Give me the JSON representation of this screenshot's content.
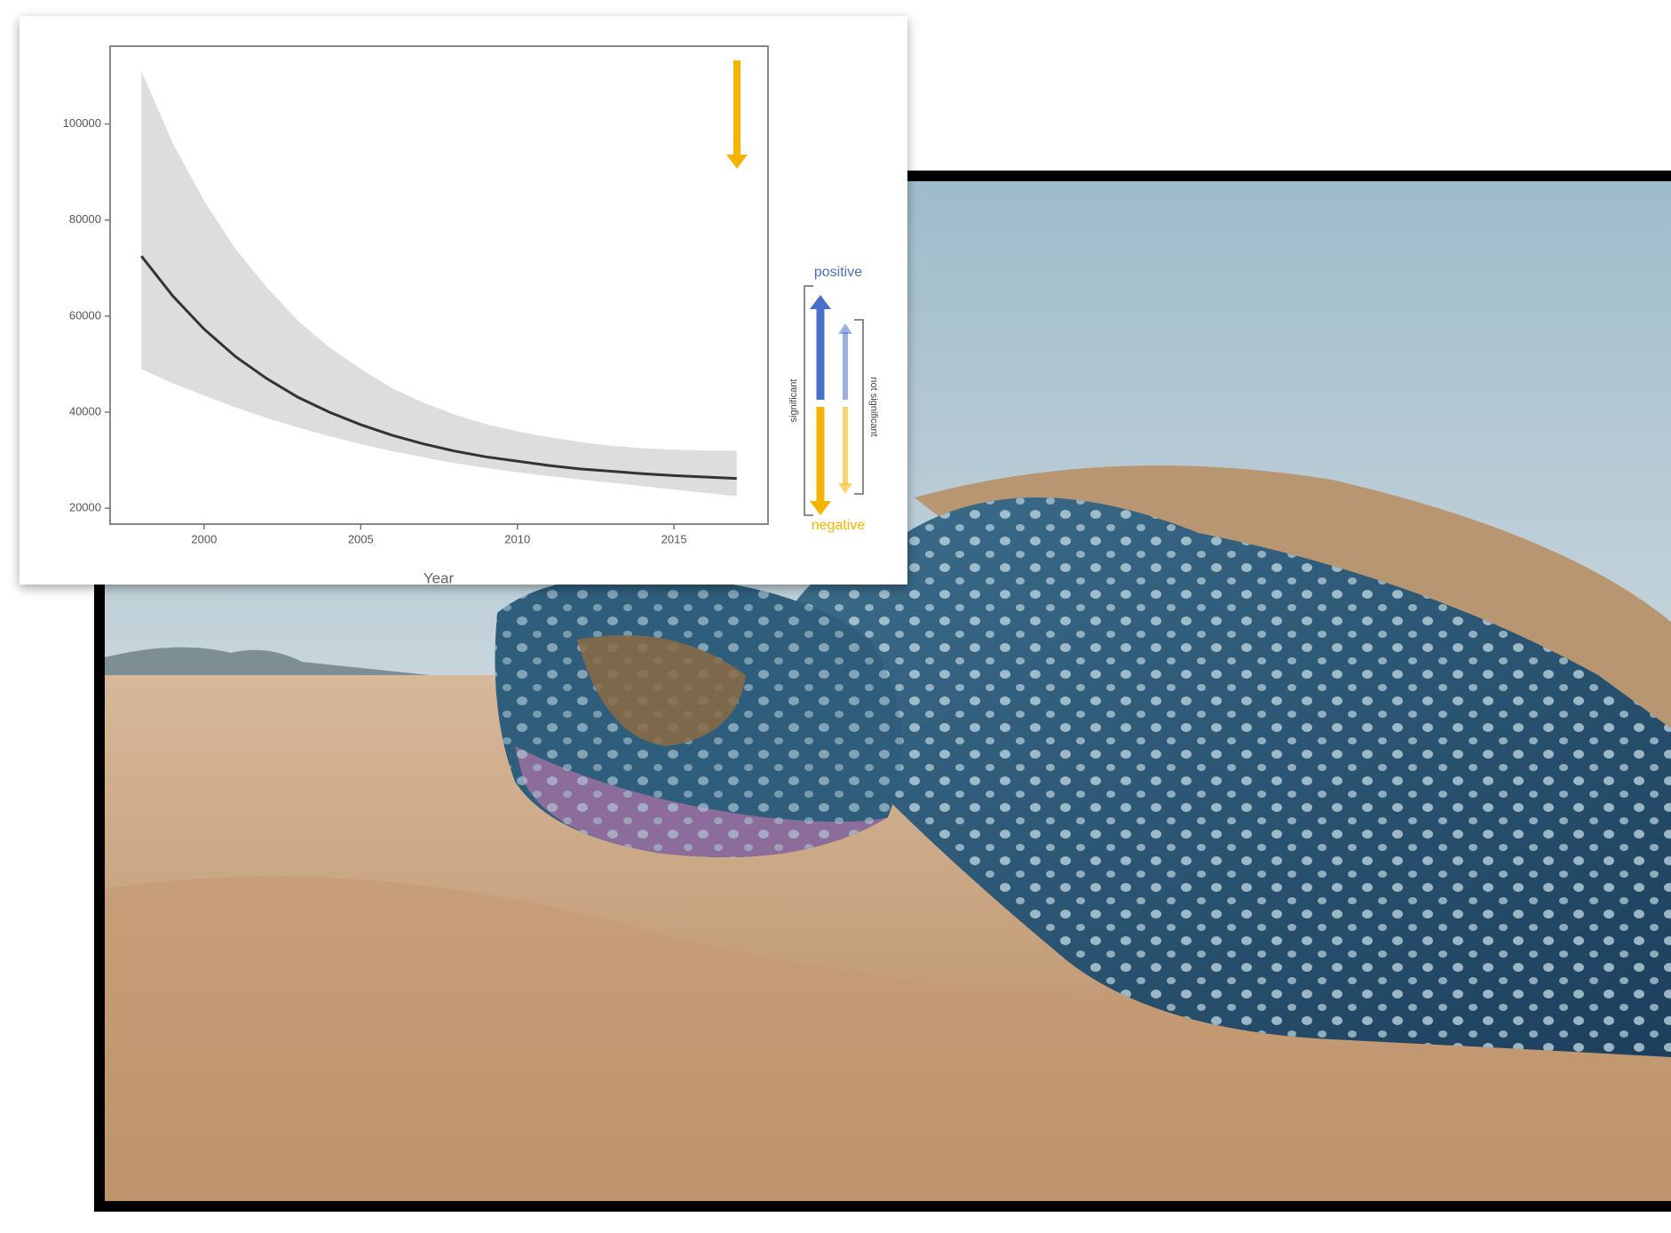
{
  "chart_data": {
    "type": "line",
    "x": [
      1998,
      1999,
      2000,
      2001,
      2002,
      2003,
      2004,
      2005,
      2006,
      2007,
      2008,
      2009,
      2010,
      2011,
      2012,
      2013,
      2014,
      2015,
      2016,
      2017
    ],
    "values": [
      72500,
      64200,
      57300,
      51600,
      47000,
      43100,
      40000,
      37400,
      35200,
      33400,
      31900,
      30700,
      29800,
      28900,
      28200,
      27700,
      27200,
      26800,
      26500,
      26200
    ],
    "upper": [
      111000,
      96000,
      84000,
      74000,
      66000,
      59000,
      53500,
      49000,
      45000,
      42000,
      39500,
      37500,
      36000,
      34800,
      33800,
      33000,
      32500,
      32200,
      32000,
      32000
    ],
    "lower": [
      49000,
      46000,
      43500,
      41000,
      38800,
      36800,
      35000,
      33400,
      31900,
      30600,
      29400,
      28400,
      27500,
      26700,
      26000,
      25300,
      24600,
      23900,
      23200,
      22500
    ],
    "color": "#333333",
    "band_color": "#d9d9d9",
    "xlim": [
      1997,
      2018
    ],
    "ylim": [
      16700,
      116200
    ],
    "xticks": [
      2000,
      2005,
      2010,
      2015
    ],
    "yticks": [
      20000,
      40000,
      60000,
      80000,
      100000
    ],
    "x_label": "Year",
    "legend": {
      "positive": "positive",
      "negative": "negative",
      "significant": "significant",
      "not_significant": "not significant",
      "positive_color": "#4a6fc8",
      "negative_color": "#f5b400"
    }
  }
}
